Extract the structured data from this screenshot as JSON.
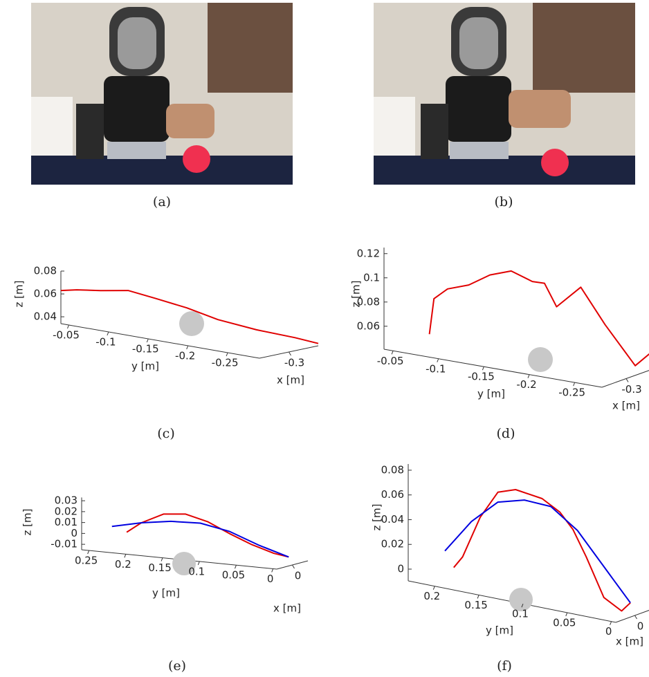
{
  "photos": [
    {
      "caption": "(a)"
    },
    {
      "caption": "(b)"
    }
  ],
  "chart_data": [
    {
      "type": "line3d",
      "caption": "(c)",
      "xlabel": "x [m]",
      "ylabel": "y [m]",
      "zlabel": "z [m]",
      "xlim": [
        -0.26,
        -0.34
      ],
      "ylim": [
        -0.04,
        -0.29
      ],
      "zlim": [
        0.034,
        0.08
      ],
      "xticks": [
        -0.3
      ],
      "yticks": [
        -0.05,
        -0.1,
        -0.15,
        -0.2,
        -0.25
      ],
      "zticks": [
        0.04,
        0.06,
        0.08
      ],
      "series": [
        {
          "color": "#e00000",
          "y": [
            -0.04,
            -0.06,
            -0.09,
            -0.12,
            -0.15,
            -0.18,
            -0.21,
            -0.24,
            -0.27,
            -0.29
          ],
          "x": [
            -0.26,
            -0.26,
            -0.26,
            -0.265,
            -0.27,
            -0.28,
            -0.29,
            -0.31,
            -0.33,
            -0.34
          ],
          "z": [
            0.063,
            0.066,
            0.069,
            0.072,
            0.068,
            0.062,
            0.054,
            0.046,
            0.04,
            0.036
          ]
        }
      ]
    },
    {
      "type": "line3d",
      "caption": "(d)",
      "xlabel": "x [m]",
      "ylabel": "y [m]",
      "zlabel": "z [m]",
      "xlim": [
        -0.26,
        -0.34
      ],
      "ylim": [
        -0.04,
        -0.28
      ],
      "zlim": [
        0.041,
        0.125
      ],
      "xticks": [
        -0.3
      ],
      "yticks": [
        -0.05,
        -0.1,
        -0.15,
        -0.2,
        -0.25
      ],
      "zticks": [
        0.06,
        0.08,
        0.1,
        0.12
      ],
      "series": [
        {
          "color": "#e00000",
          "y": [
            -0.09,
            -0.095,
            -0.11,
            -0.13,
            -0.15,
            -0.17,
            -0.19,
            -0.2,
            -0.21,
            -0.23,
            -0.25,
            -0.27,
            -0.28
          ],
          "x": [
            -0.26,
            -0.26,
            -0.26,
            -0.265,
            -0.27,
            -0.275,
            -0.28,
            -0.285,
            -0.29,
            -0.3,
            -0.31,
            -0.33,
            -0.34
          ],
          "z": [
            0.06,
            0.09,
            0.1,
            0.105,
            0.115,
            0.12,
            0.113,
            0.112,
            0.093,
            0.11,
            0.08,
            0.045,
            0.055
          ]
        }
      ]
    },
    {
      "type": "line3d",
      "caption": "(e)",
      "xlabel": "x [m]",
      "ylabel": "y [m]",
      "zlabel": "z [m]",
      "xlim": [
        0.01,
        -0.01
      ],
      "ylim": [
        0.26,
        -0.005
      ],
      "zlim": [
        -0.015,
        0.033
      ],
      "xticks": [
        0
      ],
      "yticks": [
        0.25,
        0.2,
        0.15,
        0.1,
        0.05,
        0
      ],
      "zticks": [
        -0.01,
        0,
        0.01,
        0.02,
        0.03
      ],
      "series": [
        {
          "color": "#e00000",
          "y": [
            0.22,
            0.2,
            0.17,
            0.14,
            0.11,
            0.08,
            0.05,
            0.02,
            0.0
          ],
          "x": [
            0,
            0,
            0,
            0,
            0,
            0,
            0,
            0,
            0
          ],
          "z": [
            0,
            0.01,
            0.02,
            0.022,
            0.017,
            0.008,
            0.0,
            -0.006,
            -0.008
          ]
        },
        {
          "color": "#0000e0",
          "y": [
            0.24,
            0.2,
            0.16,
            0.12,
            0.08,
            0.04,
            0.0
          ],
          "x": [
            0,
            0,
            0,
            0,
            0,
            0,
            0
          ],
          "z": [
            0.004,
            0.01,
            0.014,
            0.015,
            0.01,
            0.0,
            -0.008
          ]
        }
      ]
    },
    {
      "type": "line3d",
      "caption": "(f)",
      "xlabel": "x [m]",
      "ylabel": "y [m]",
      "zlabel": "z [m]",
      "xlim": [
        0.01,
        -0.01
      ],
      "ylim": [
        0.23,
        -0.005
      ],
      "zlim": [
        -0.0095,
        0.085
      ],
      "xticks": [
        0
      ],
      "yticks": [
        0.2,
        0.15,
        0.1,
        0.05,
        0
      ],
      "zticks": [
        0,
        0.02,
        0.04,
        0.06,
        0.08
      ],
      "series": [
        {
          "color": "#e00000",
          "y": [
            0.2,
            0.19,
            0.17,
            0.15,
            0.13,
            0.1,
            0.08,
            0.065,
            0.05,
            0.03,
            0.01,
            0.0
          ],
          "x": [
            0,
            0,
            0,
            0,
            0,
            0,
            0,
            0,
            0,
            0,
            0,
            0
          ],
          "z": [
            0,
            0.01,
            0.045,
            0.068,
            0.073,
            0.07,
            0.062,
            0.05,
            0.03,
            0.0,
            -0.008,
            0.0
          ]
        },
        {
          "color": "#0000e0",
          "y": [
            0.21,
            0.18,
            0.15,
            0.12,
            0.09,
            0.06,
            0.03,
            0.0
          ],
          "x": [
            0,
            0,
            0,
            0,
            0,
            0,
            0,
            0
          ],
          "z": [
            0.012,
            0.04,
            0.06,
            0.066,
            0.065,
            0.05,
            0.025,
            0.0
          ]
        }
      ]
    }
  ]
}
